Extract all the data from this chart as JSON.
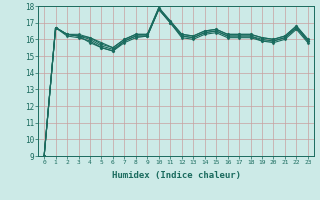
{
  "xlabel": "Humidex (Indice chaleur)",
  "ylabel": "",
  "xlim": [
    -0.5,
    23.5
  ],
  "ylim": [
    9,
    18
  ],
  "xticks": [
    0,
    1,
    2,
    3,
    4,
    5,
    6,
    7,
    8,
    9,
    10,
    11,
    12,
    13,
    14,
    15,
    16,
    17,
    18,
    19,
    20,
    21,
    22,
    23
  ],
  "yticks": [
    9,
    10,
    11,
    12,
    13,
    14,
    15,
    16,
    17,
    18
  ],
  "bg_color": "#cceae7",
  "line_color": "#1a6b5e",
  "lines": [
    [
      9.0,
      16.7,
      16.3,
      16.2,
      15.8,
      15.5,
      15.3,
      15.9,
      16.2,
      16.2,
      17.8,
      17.0,
      16.2,
      16.1,
      16.4,
      16.5,
      16.2,
      16.2,
      16.2,
      15.9,
      15.9,
      16.1,
      16.7,
      15.9
    ],
    [
      9.0,
      16.7,
      16.2,
      16.1,
      15.9,
      15.5,
      15.3,
      15.8,
      16.1,
      16.2,
      17.8,
      17.0,
      16.1,
      16.0,
      16.3,
      16.4,
      16.1,
      16.1,
      16.1,
      15.9,
      15.8,
      16.0,
      16.6,
      15.8
    ],
    [
      9.0,
      16.7,
      16.3,
      16.2,
      16.0,
      15.6,
      15.4,
      15.9,
      16.2,
      16.2,
      17.8,
      17.0,
      16.2,
      16.1,
      16.4,
      16.5,
      16.2,
      16.2,
      16.2,
      16.0,
      15.9,
      16.1,
      16.7,
      15.9
    ],
    [
      9.0,
      16.7,
      16.3,
      16.2,
      16.1,
      15.7,
      15.5,
      16.0,
      16.3,
      16.3,
      17.9,
      17.1,
      16.3,
      16.2,
      16.5,
      16.6,
      16.3,
      16.3,
      16.3,
      16.1,
      16.0,
      16.2,
      16.8,
      16.0
    ],
    [
      9.0,
      16.7,
      16.3,
      16.3,
      16.1,
      15.8,
      15.5,
      16.0,
      16.3,
      16.3,
      17.9,
      17.1,
      16.3,
      16.2,
      16.5,
      16.6,
      16.3,
      16.3,
      16.3,
      16.1,
      16.0,
      16.2,
      16.8,
      16.0
    ]
  ],
  "marker": "D",
  "marker_size": 1.5,
  "line_width": 0.8,
  "grid_color": "#b8dbd8",
  "grid_major_color": "#c8a0a0",
  "tick_color": "#1a6b5e",
  "spine_color": "#1a6b5e",
  "xlabel_fontsize": 6.5,
  "xtick_fontsize": 4.5,
  "ytick_fontsize": 5.5
}
